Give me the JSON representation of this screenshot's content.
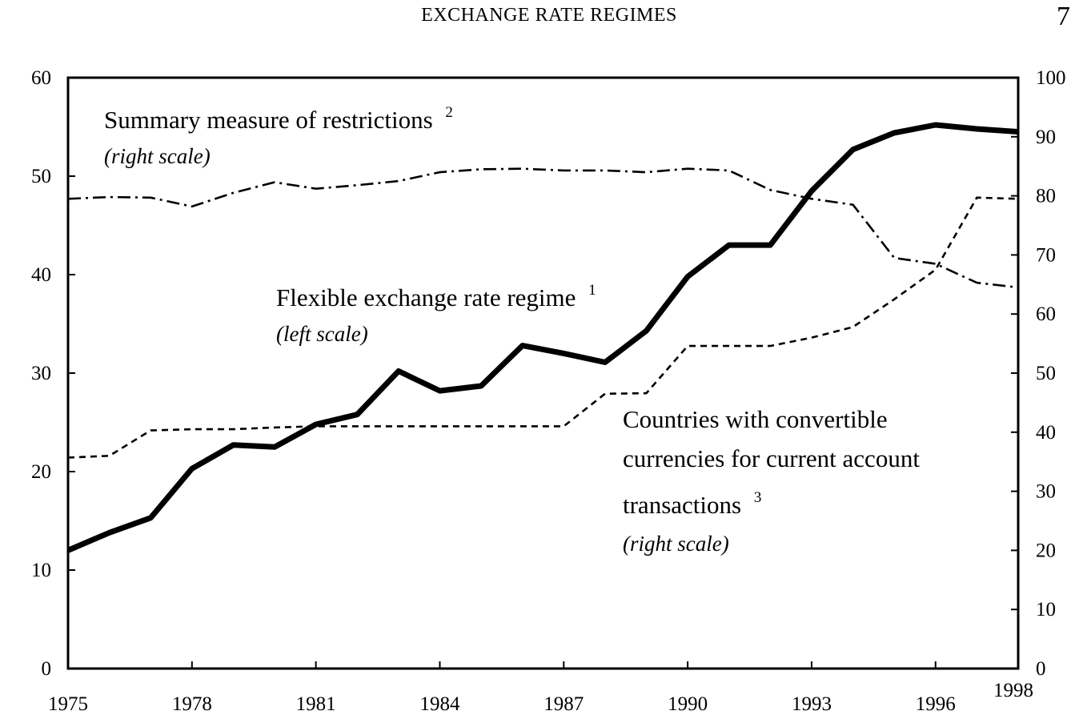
{
  "header": {
    "running_title": "EXCHANGE RATE REGIMES",
    "page_number": "7"
  },
  "chart_data": {
    "type": "line",
    "x": [
      1975,
      1976,
      1977,
      1978,
      1979,
      1980,
      1981,
      1982,
      1983,
      1984,
      1985,
      1986,
      1987,
      1988,
      1989,
      1990,
      1991,
      1992,
      1993,
      1994,
      1995,
      1996,
      1997,
      1998
    ],
    "x_ticks": [
      "1975",
      "1978",
      "1981",
      "1984",
      "1987",
      "1990",
      "1993",
      "1996",
      "1998"
    ],
    "xlim": [
      1975,
      1998
    ],
    "left_axis": {
      "ylim": [
        0,
        60
      ],
      "ticks": [
        "0",
        "10",
        "20",
        "30",
        "40",
        "50",
        "60"
      ]
    },
    "right_axis": {
      "ylim": [
        0,
        100
      ],
      "ticks": [
        "0",
        "10",
        "20",
        "30",
        "40",
        "50",
        "60",
        "70",
        "80",
        "90",
        "100"
      ]
    },
    "grid": false,
    "legend": "none",
    "series": [
      {
        "key": "flexible",
        "axis": "left",
        "style": "thick-solid",
        "values": [
          12,
          13.8,
          15.3,
          20.3,
          22.7,
          22.5,
          24.8,
          25.8,
          30.2,
          28.2,
          28.7,
          32.8,
          32,
          31.1,
          34.3,
          39.8,
          43,
          43,
          48.5,
          52.7,
          54.4,
          55.2,
          54.8,
          54.5
        ]
      },
      {
        "key": "restrictions",
        "axis": "right",
        "style": "dash-dot",
        "values": [
          79.5,
          79.8,
          79.7,
          78.2,
          80.5,
          82.3,
          81.2,
          81.8,
          82.5,
          84,
          84.5,
          84.6,
          84.3,
          84.3,
          84,
          84.6,
          84.3,
          81,
          79.5,
          78.5,
          69.5,
          68.5,
          65.3,
          64.5
        ]
      },
      {
        "key": "convertible",
        "axis": "right",
        "style": "dashed",
        "values": [
          35.7,
          36,
          40.3,
          40.5,
          40.5,
          40.8,
          41,
          41,
          41,
          41,
          41,
          41,
          41,
          46.5,
          46.6,
          54.6,
          54.6,
          54.6,
          56,
          57.8,
          62.5,
          67.5,
          79.7,
          79.5
        ]
      }
    ],
    "annotations": {
      "restrictions": {
        "label": "Summary measure of restrictions",
        "note": "2",
        "scale": "(right scale)"
      },
      "flexible": {
        "label": "Flexible exchange rate regime",
        "note": "1",
        "scale": "(left scale)"
      },
      "convertible": {
        "lines": [
          "Countries with convertible",
          "currencies for current account",
          "transactions"
        ],
        "note": "3",
        "scale": "(right scale)"
      }
    }
  }
}
